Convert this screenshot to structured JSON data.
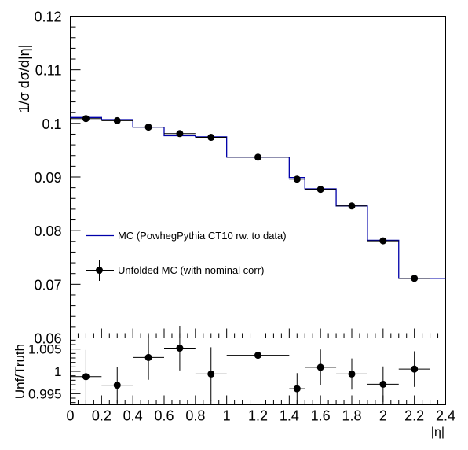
{
  "chart_data": [
    {
      "type": "line",
      "ylabel": "1/σ dσ/d|η|",
      "xlim": [
        0,
        2.4
      ],
      "ylim": [
        0.06,
        0.12
      ],
      "y_ticks": [
        "0.06",
        "0.07",
        "0.08",
        "0.09",
        "0.1",
        "0.11",
        "0.12"
      ],
      "bin_edges": [
        0,
        0.2,
        0.4,
        0.6,
        0.8,
        1.0,
        1.4,
        1.5,
        1.7,
        1.9,
        2.1,
        2.3,
        2.4
      ],
      "grid": false,
      "legend_position": "lower-left",
      "series": [
        {
          "name": "MC (PowhegPythia CT10 rw. to data)",
          "kind": "histogram",
          "color": "#0000aa",
          "values": [
            0.1011,
            0.1007,
            0.0993,
            0.0977,
            0.0975,
            0.0937,
            0.0899,
            0.0878,
            0.0846,
            0.0782,
            0.0711,
            0.0711
          ]
        },
        {
          "name": "Unfolded MC (with nominal corr)",
          "kind": "points",
          "color": "#000000",
          "x": [
            0.1,
            0.3,
            0.5,
            0.7,
            0.9,
            1.2,
            1.45,
            1.6,
            1.8,
            2.0,
            2.2
          ],
          "y": [
            0.1009,
            0.1005,
            0.0993,
            0.0981,
            0.0974,
            0.0937,
            0.0896,
            0.0877,
            0.0846,
            0.0781,
            0.0711
          ],
          "xerr": [
            0.1,
            0.1,
            0.1,
            0.1,
            0.1,
            0.2,
            0.05,
            0.1,
            0.1,
            0.1,
            0.1
          ],
          "yerr": [
            0.0004,
            0.0004,
            0.0004,
            0.0004,
            0.0004,
            0.0004,
            0.0004,
            0.0004,
            0.0004,
            0.0004,
            0.0004
          ]
        }
      ]
    },
    {
      "type": "scatter",
      "xlabel": "|η|",
      "ylabel": "Unf/Truth",
      "xlim": [
        0,
        2.4
      ],
      "ylim": [
        0.9925,
        1.0075
      ],
      "x_ticks": [
        "0",
        "0.2",
        "0.4",
        "0.6",
        "0.8",
        "1",
        "1.2",
        "1.4",
        "1.6",
        "1.8",
        "2",
        "2.2",
        "2.4"
      ],
      "y_ticks": [
        "0.995",
        "1",
        "1.005"
      ],
      "grid": false,
      "series": [
        {
          "kind": "points",
          "color": "#000000",
          "x": [
            0.1,
            0.3,
            0.5,
            0.7,
            0.9,
            1.2,
            1.45,
            1.6,
            1.8,
            2.0,
            2.2
          ],
          "y": [
            0.9988,
            0.9969,
            1.0031,
            1.0052,
            0.9994,
            1.0036,
            0.9961,
            1.0009,
            0.9994,
            0.9971,
            1.0005
          ],
          "xerr": [
            0.1,
            0.1,
            0.1,
            0.1,
            0.1,
            0.2,
            0.05,
            0.1,
            0.1,
            0.1,
            0.1
          ],
          "yerr": [
            0.006,
            0.004,
            0.005,
            0.005,
            0.006,
            0.005,
            0.0035,
            0.004,
            0.0035,
            0.004,
            0.004
          ]
        }
      ]
    }
  ]
}
